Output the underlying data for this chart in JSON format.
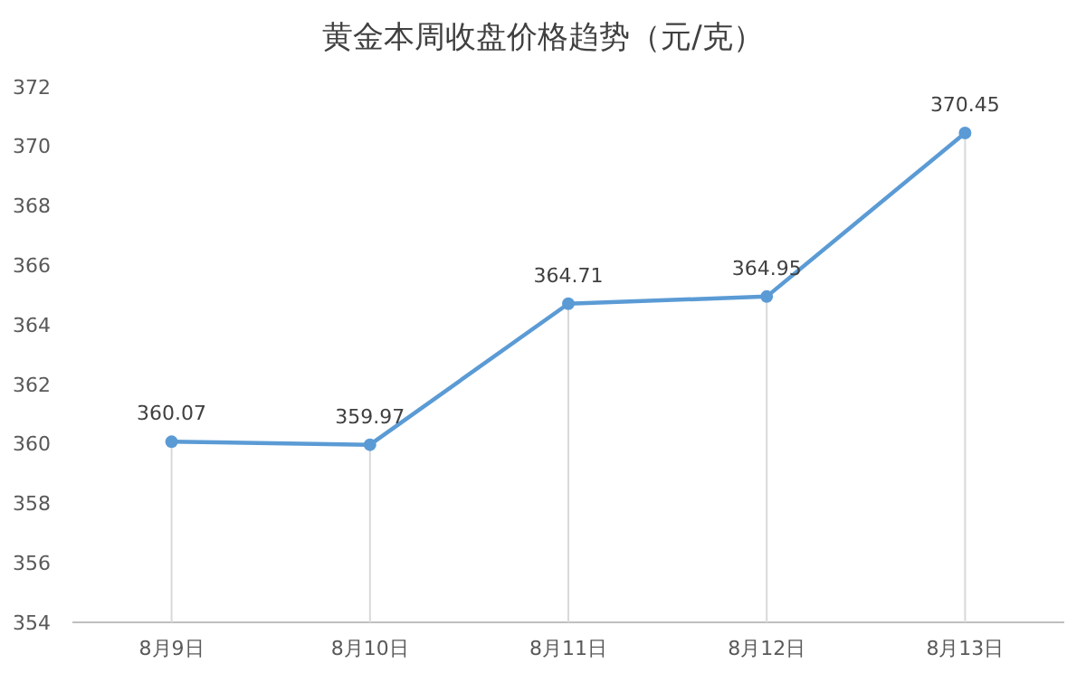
{
  "chart_data": {
    "type": "line",
    "title": "黄金本周收盘价格趋势（元/克）",
    "categories": [
      "8月9日",
      "8月10日",
      "8月11日",
      "8月12日",
      "8月13日"
    ],
    "series": [
      {
        "color": "#5b9bd5",
        "values": [
          360.07,
          359.97,
          364.71,
          364.95,
          370.45
        ]
      }
    ],
    "ylim": [
      354,
      372
    ],
    "yticks": [
      354,
      356,
      358,
      360,
      362,
      364,
      366,
      368,
      370,
      372
    ],
    "grid": "x",
    "marker": "circle",
    "line_style": "solid",
    "data_labels": true
  }
}
